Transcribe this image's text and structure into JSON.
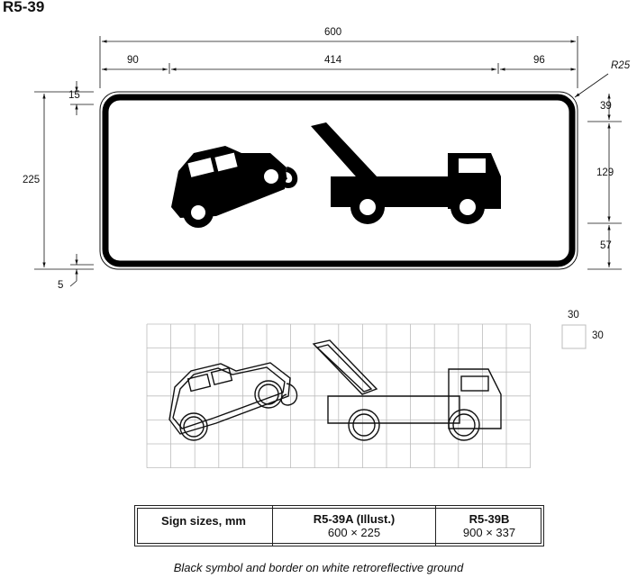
{
  "sign_code": "R5-39",
  "dimensions": {
    "total_width": "600",
    "left": "90",
    "middle": "414",
    "right": "96",
    "corner_radius": "R25",
    "total_height": "225",
    "top_border": "15",
    "bottom_offset": "5",
    "right_top": "39",
    "right_middle": "129",
    "right_bottom": "57"
  },
  "grid_scale": {
    "w": "30",
    "h": "30"
  },
  "size_table": {
    "header": "Sign sizes, mm",
    "col_a_title": "R5-39A (Illust.)",
    "col_a_value": "600 × 225",
    "col_b_title": "R5-39B",
    "col_b_value": "900 × 337"
  },
  "caption": "Black symbol and border on white retroreflective ground",
  "colors": {
    "symbol": "#000000",
    "ground": "#ffffff",
    "grid": "#bdbdbd"
  }
}
